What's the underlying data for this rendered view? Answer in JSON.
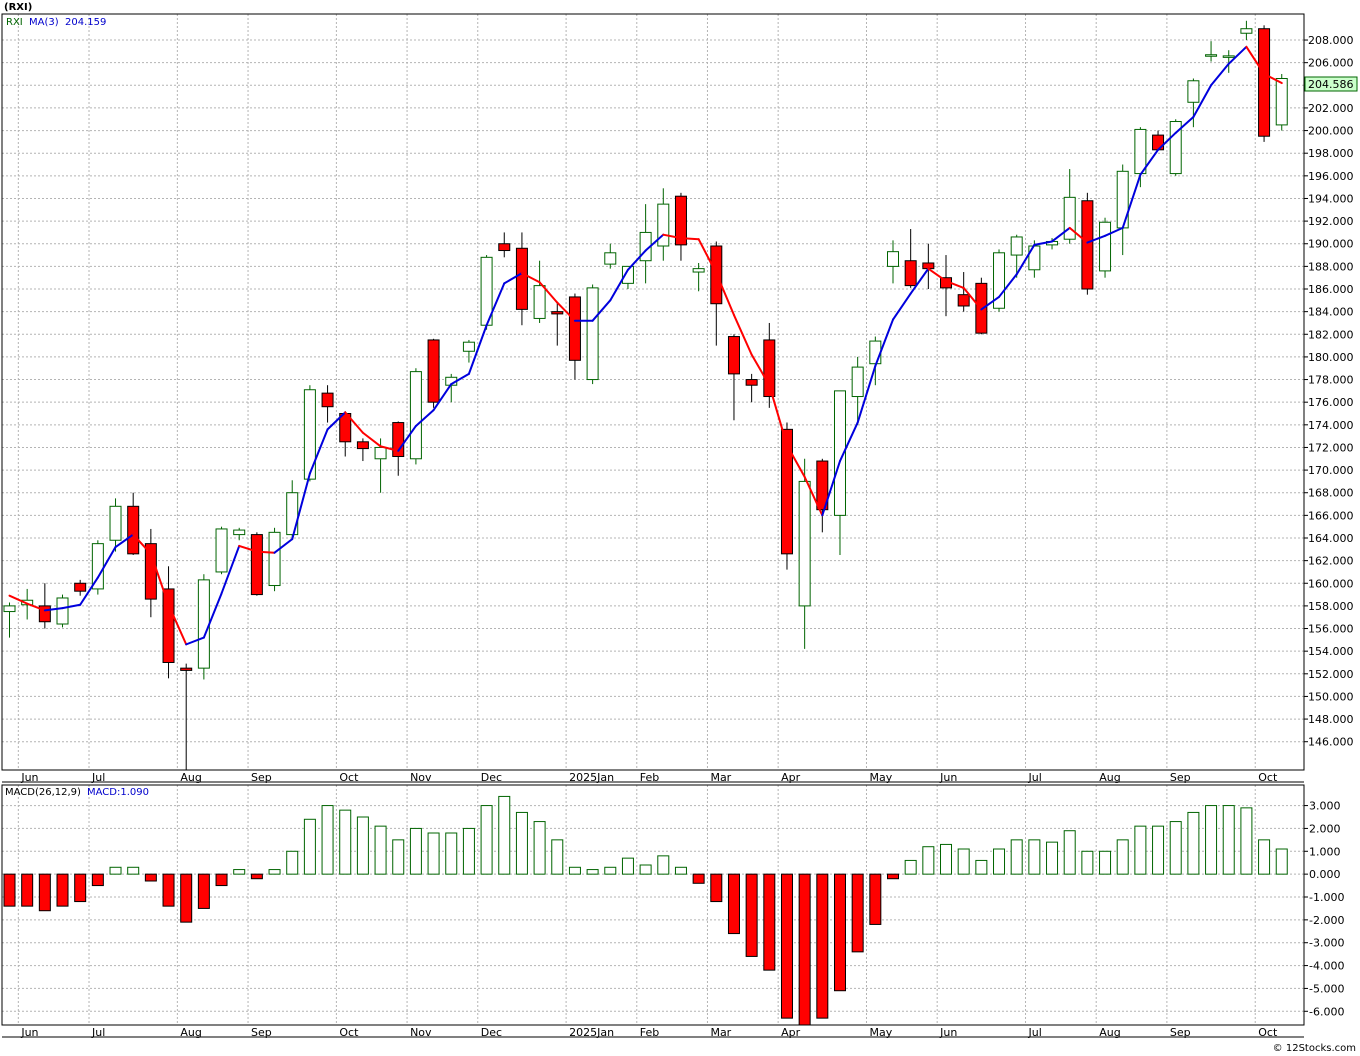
{
  "symbol_title": "(RXI)",
  "legend": {
    "symbol": "RXI",
    "ma_label": "MA(3)",
    "ma_value": "204.159"
  },
  "macd_legend": {
    "label": "MACD(26,12,9)",
    "value": "MACD:1.090"
  },
  "last_price_label": "204.586",
  "watermark": "© 12Stocks.com",
  "colors": {
    "up": "#006400",
    "down": "#ff0000",
    "ma_up": "#0000dd",
    "ma_down": "#ff0000",
    "grid": "#b4b4b4"
  },
  "chart_data": [
    {
      "type": "candlestick",
      "name": "RXI weekly",
      "ylim": [
        143.5,
        210.3
      ],
      "y_ticks": [
        146,
        148,
        150,
        152,
        154,
        156,
        158,
        160,
        162,
        164,
        166,
        168,
        170,
        172,
        174,
        176,
        178,
        180,
        182,
        184,
        186,
        188,
        190,
        192,
        194,
        196,
        198,
        200,
        202,
        204,
        206,
        208
      ],
      "month_labels": [
        "Jun",
        "Jul",
        "Aug",
        "Sep",
        "Oct",
        "Nov",
        "Dec",
        "2025Jan",
        "Feb",
        "Mar",
        "Apr",
        "May",
        "Jun",
        "Jul",
        "Aug",
        "Sep",
        "Oct"
      ],
      "month_start_week": [
        1,
        5,
        10,
        14,
        19,
        23,
        27,
        32,
        36,
        40,
        44,
        49,
        53,
        58,
        62,
        66,
        71
      ],
      "candles": [
        [
          157.5,
          158.3,
          155.2,
          158.0
        ],
        [
          158.1,
          159.5,
          156.8,
          158.5
        ],
        [
          158.0,
          160.0,
          156.0,
          156.6
        ],
        [
          156.4,
          159.0,
          156.1,
          158.7
        ],
        [
          160.0,
          160.3,
          158.9,
          159.3
        ],
        [
          159.5,
          163.8,
          159.0,
          163.5
        ],
        [
          163.8,
          167.5,
          162.8,
          166.8
        ],
        [
          166.8,
          168.0,
          162.5,
          162.6
        ],
        [
          163.5,
          164.8,
          157.0,
          158.6
        ],
        [
          159.5,
          161.5,
          151.6,
          153.0
        ],
        [
          152.5,
          152.9,
          143.5,
          152.3
        ],
        [
          152.5,
          160.8,
          151.5,
          160.3
        ],
        [
          161.0,
          165.0,
          160.8,
          164.8
        ],
        [
          164.3,
          164.9,
          163.8,
          164.7
        ],
        [
          164.3,
          164.5,
          158.9,
          159.0
        ],
        [
          159.8,
          164.9,
          159.3,
          164.5
        ],
        [
          164.3,
          169.1,
          164.0,
          168.0
        ],
        [
          169.2,
          177.5,
          169.0,
          177.1
        ],
        [
          176.8,
          177.5,
          174.2,
          175.6
        ],
        [
          175.0,
          175.2,
          171.2,
          172.5
        ],
        [
          172.5,
          172.8,
          170.8,
          171.9
        ],
        [
          171.0,
          172.8,
          168.0,
          172.0
        ],
        [
          174.2,
          174.3,
          169.5,
          171.2
        ],
        [
          171.0,
          179.0,
          170.5,
          178.7
        ],
        [
          181.5,
          181.6,
          175.5,
          176.0
        ],
        [
          177.5,
          178.5,
          176.0,
          178.2
        ],
        [
          180.5,
          181.5,
          179.5,
          181.3
        ],
        [
          182.8,
          189.0,
          182.4,
          188.8
        ],
        [
          190.0,
          191.0,
          188.8,
          189.4
        ],
        [
          189.6,
          191.0,
          182.8,
          184.2
        ],
        [
          183.4,
          188.5,
          183.0,
          186.3
        ],
        [
          184.0,
          184.8,
          181.0,
          183.8
        ],
        [
          185.3,
          185.6,
          178.0,
          179.7
        ],
        [
          178.0,
          186.4,
          177.6,
          186.1
        ],
        [
          188.2,
          190.0,
          187.8,
          189.2
        ],
        [
          186.5,
          188.0,
          186.0,
          188.0
        ],
        [
          188.5,
          193.5,
          186.5,
          191.0
        ],
        [
          189.8,
          194.9,
          188.5,
          193.5
        ],
        [
          194.2,
          194.5,
          188.5,
          189.9
        ],
        [
          187.5,
          188.3,
          185.8,
          187.8
        ],
        [
          189.8,
          190.2,
          181.0,
          184.7
        ],
        [
          181.8,
          182.0,
          174.4,
          178.5
        ],
        [
          178.0,
          178.5,
          176.0,
          177.5
        ],
        [
          181.5,
          183.0,
          175.5,
          176.5
        ],
        [
          173.6,
          174.2,
          161.2,
          162.6
        ],
        [
          158.0,
          171.0,
          154.2,
          169.0
        ],
        [
          170.8,
          171.0,
          164.5,
          166.5
        ],
        [
          166.0,
          177.0,
          162.5,
          177.0
        ],
        [
          176.5,
          180.0,
          174.0,
          179.1
        ],
        [
          179.4,
          181.8,
          177.5,
          181.4
        ],
        [
          188.0,
          190.3,
          186.5,
          189.3
        ],
        [
          188.5,
          191.3,
          186.1,
          186.3
        ],
        [
          188.3,
          190.0,
          186.0,
          187.8
        ],
        [
          187.0,
          189.0,
          183.6,
          186.1
        ],
        [
          185.5,
          187.5,
          184.0,
          184.5
        ],
        [
          186.5,
          187.0,
          182.0,
          182.1
        ],
        [
          184.3,
          189.5,
          184.0,
          189.2
        ],
        [
          189.0,
          190.8,
          187.0,
          190.6
        ],
        [
          187.7,
          190.3,
          187.0,
          189.8
        ],
        [
          189.9,
          190.5,
          189.5,
          190.2
        ],
        [
          190.4,
          196.6,
          190.0,
          194.1
        ],
        [
          193.8,
          194.5,
          185.5,
          186.0
        ],
        [
          187.6,
          192.3,
          187.0,
          191.9
        ],
        [
          191.4,
          197.0,
          189.0,
          196.4
        ],
        [
          196.2,
          200.3,
          195.0,
          200.1
        ],
        [
          199.6,
          200.0,
          198.2,
          198.3
        ],
        [
          196.2,
          201.0,
          196.0,
          200.8
        ],
        [
          202.5,
          204.6,
          200.3,
          204.4
        ],
        [
          206.7,
          207.9,
          206.1,
          206.7
        ],
        [
          206.6,
          207.1,
          205.1,
          206.6
        ],
        [
          208.6,
          209.7,
          208.0,
          209.0
        ],
        [
          209.0,
          209.3,
          199.0,
          199.5
        ],
        [
          200.5,
          205.0,
          200.0,
          204.6
        ]
      ],
      "ma3": [
        158.9,
        158.2,
        157.6,
        157.8,
        158.1,
        160.5,
        163.2,
        164.3,
        162.6,
        158.1,
        154.6,
        155.2,
        159.1,
        163.3,
        162.8,
        162.7,
        163.9,
        169.7,
        173.6,
        175.1,
        173.3,
        172.1,
        171.7,
        173.9,
        175.3,
        177.6,
        178.5,
        182.8,
        186.5,
        187.4,
        186.6,
        184.8,
        183.2,
        183.2,
        185.0,
        187.7,
        189.4,
        190.8,
        190.5,
        190.4,
        187.4,
        183.7,
        180.2,
        177.5,
        172.2,
        169.4,
        166.0,
        170.8,
        174.2,
        179.2,
        183.3,
        185.6,
        187.8,
        186.7,
        186.1,
        184.2,
        185.3,
        187.3,
        189.9,
        190.2,
        191.4,
        190.1,
        190.7,
        191.4,
        196.1,
        198.3,
        199.8,
        201.2,
        204.0,
        205.9,
        207.4,
        205.0,
        204.2
      ]
    },
    {
      "type": "bar",
      "name": "MACD(26,12,9)",
      "ylim": [
        -6.6,
        3.9
      ],
      "y_ticks": [
        3,
        2,
        1,
        0,
        -1,
        -2,
        -3,
        -4,
        -5,
        -6
      ],
      "y_tick_labels": [
        "3.000",
        "2.000",
        "1.000",
        "0.000",
        "-1.000",
        "-2.000",
        "-3.000",
        "-4.000",
        "-5.000",
        "-6.000"
      ],
      "month_labels": [
        "Jun",
        "Jul",
        "Aug",
        "Sep",
        "Oct",
        "Nov",
        "Dec",
        "2025Jan",
        "Feb",
        "Mar",
        "Apr",
        "May",
        "Jun",
        "Jul",
        "Aug",
        "Sep",
        "Oct"
      ],
      "values": [
        -1.4,
        -1.4,
        -1.6,
        -1.4,
        -1.2,
        -0.5,
        0.3,
        0.3,
        -0.3,
        -1.4,
        -2.1,
        -1.5,
        -0.5,
        0.2,
        -0.2,
        0.2,
        1.0,
        2.4,
        3.0,
        2.8,
        2.5,
        2.1,
        1.5,
        2.0,
        1.8,
        1.8,
        2.0,
        3.0,
        3.4,
        2.7,
        2.3,
        1.5,
        0.3,
        0.2,
        0.3,
        0.7,
        0.4,
        0.8,
        0.3,
        -0.4,
        -1.2,
        -2.6,
        -3.6,
        -4.2,
        -6.3,
        -6.6,
        -6.3,
        -5.1,
        -3.4,
        -2.2,
        -0.2,
        0.6,
        1.2,
        1.3,
        1.1,
        0.6,
        1.1,
        1.5,
        1.5,
        1.4,
        1.9,
        1.0,
        1.0,
        1.5,
        2.1,
        2.1,
        2.3,
        2.7,
        3.0,
        3.0,
        2.9,
        1.5,
        1.1
      ]
    }
  ]
}
